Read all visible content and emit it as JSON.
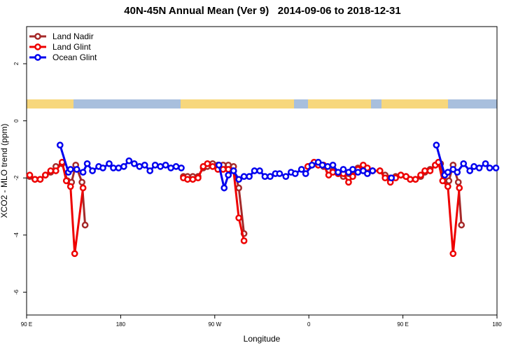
{
  "chart_data": {
    "type": "line",
    "title": "40N-45N Annual Mean (Ver 9)   2014-09-06 to 2018-12-31",
    "x_label": "Longitude",
    "y_label": "XCO2 - MLO trend (ppm)",
    "xlim": [
      90,
      540
    ],
    "ylim": [
      -6.8,
      3.3
    ],
    "xticks": [
      {
        "value": 90,
        "label": "90 E"
      },
      180,
      {
        "value": 270,
        "label": "90 W"
      },
      {
        "value": 360,
        "label": "0"
      },
      {
        "value": 450,
        "label": "90 E"
      },
      {
        "value": 540,
        "label": "180"
      }
    ],
    "yticks": [
      -6,
      -4,
      -2,
      0,
      2
    ],
    "legend": "upper left",
    "series": [
      {
        "name": "Land Nadir",
        "color": "#a52a2a",
        "x": [
          93,
          98,
          103,
          108,
          113,
          118,
          124,
          129,
          133,
          137,
          143,
          146,
          null,
          240,
          244,
          249,
          254,
          259,
          263,
          268,
          273,
          278,
          283,
          288,
          293,
          298,
          null,
          360,
          365,
          369,
          374,
          379,
          383,
          388,
          393,
          398,
          402,
          407,
          412,
          416,
          421,
          428,
          433,
          438,
          443,
          448,
          453,
          457,
          462,
          467,
          471,
          476,
          481,
          486,
          490,
          494,
          498,
          503,
          506
        ],
        "values": [
          -1.95,
          -2.05,
          -2.05,
          -1.9,
          -1.8,
          -1.6,
          -1.5,
          -2.1,
          -2.15,
          -1.55,
          -2.15,
          -3.65,
          null,
          -1.95,
          -1.95,
          -1.95,
          -1.95,
          -1.65,
          -1.6,
          -1.5,
          -1.55,
          -1.55,
          -1.55,
          -1.6,
          -2.35,
          -3.95,
          null,
          -1.6,
          -1.5,
          -1.55,
          -1.6,
          -1.75,
          -1.75,
          -1.85,
          -1.95,
          -1.85,
          -1.9,
          -1.65,
          -1.6,
          -1.7,
          -1.75,
          -1.75,
          -1.9,
          -2.0,
          -1.95,
          -1.9,
          -1.95,
          -2.05,
          -2.05,
          -1.95,
          -1.8,
          -1.7,
          -1.55,
          -1.5,
          -2.1,
          -2.1,
          -1.55,
          -2.15,
          -3.65
        ]
      },
      {
        "name": "Land Glint",
        "color": "#ee0000",
        "x": [
          93,
          98,
          103,
          108,
          113,
          118,
          124,
          128,
          132,
          136,
          144,
          null,
          240,
          244,
          249,
          254,
          259,
          263,
          268,
          273,
          278,
          283,
          288,
          293,
          298,
          null,
          359,
          365,
          369,
          374,
          379,
          383,
          388,
          393,
          398,
          402,
          407,
          412,
          416,
          421,
          428,
          433,
          438,
          443,
          448,
          453,
          457,
          462,
          467,
          471,
          476,
          481,
          484,
          488,
          493,
          498,
          504
        ],
        "values": [
          -1.9,
          -2.05,
          -2.05,
          -1.9,
          -1.75,
          -1.75,
          -1.45,
          -2.1,
          -2.3,
          -4.65,
          -2.35,
          null,
          -2.0,
          -2.05,
          -2.05,
          -2.0,
          -1.6,
          -1.5,
          -1.6,
          -1.7,
          -1.7,
          -1.7,
          -1.75,
          -3.4,
          -4.2,
          null,
          -1.6,
          -1.45,
          -1.55,
          -1.55,
          -1.9,
          -1.8,
          -1.85,
          -1.85,
          -2.15,
          -1.95,
          -1.7,
          -1.55,
          -1.65,
          -1.75,
          -1.75,
          -2.0,
          -2.15,
          -2.0,
          -1.9,
          -1.95,
          -2.05,
          -2.05,
          -1.9,
          -1.75,
          -1.75,
          -1.55,
          -1.45,
          -2.1,
          -2.3,
          -4.65,
          -2.35
        ]
      },
      {
        "name": "Ocean Glint",
        "color": "#0000ee",
        "x": [
          122,
          130,
          132,
          138,
          144,
          148,
          153,
          159,
          163,
          169,
          173,
          178,
          183,
          188,
          193,
          198,
          203,
          208,
          213,
          218,
          223,
          228,
          233,
          238,
          null,
          274,
          279,
          283,
          288,
          293,
          298,
          303,
          308,
          313,
          318,
          323,
          328,
          332,
          338,
          343,
          347,
          353,
          357,
          363,
          369,
          373,
          378,
          383,
          388,
          393,
          398,
          402,
          407,
          412,
          416,
          421,
          null,
          439,
          null,
          482,
          490,
          493,
          498,
          502,
          508,
          514,
          518,
          523,
          529,
          533,
          539
        ],
        "values": [
          -0.85,
          -1.8,
          -1.7,
          -1.7,
          -1.8,
          -1.5,
          -1.75,
          -1.6,
          -1.65,
          -1.5,
          -1.65,
          -1.65,
          -1.6,
          -1.4,
          -1.5,
          -1.6,
          -1.55,
          -1.75,
          -1.55,
          -1.6,
          -1.55,
          -1.65,
          -1.6,
          -1.65,
          null,
          -1.55,
          -2.35,
          -1.9,
          -1.75,
          -2.05,
          -1.95,
          -1.95,
          -1.75,
          -1.75,
          -1.95,
          -1.95,
          -1.85,
          -1.85,
          -1.95,
          -1.8,
          -1.85,
          -1.7,
          -1.85,
          -1.55,
          -1.45,
          -1.55,
          -1.6,
          -1.55,
          -1.8,
          -1.7,
          -1.8,
          -1.7,
          -1.8,
          -1.75,
          -1.85,
          -1.75,
          null,
          -2.0,
          null,
          -0.85,
          -1.9,
          -1.8,
          -1.7,
          -1.8,
          -1.5,
          -1.75,
          -1.6,
          -1.65,
          -1.5,
          -1.65,
          -1.65
        ]
      }
    ]
  }
}
